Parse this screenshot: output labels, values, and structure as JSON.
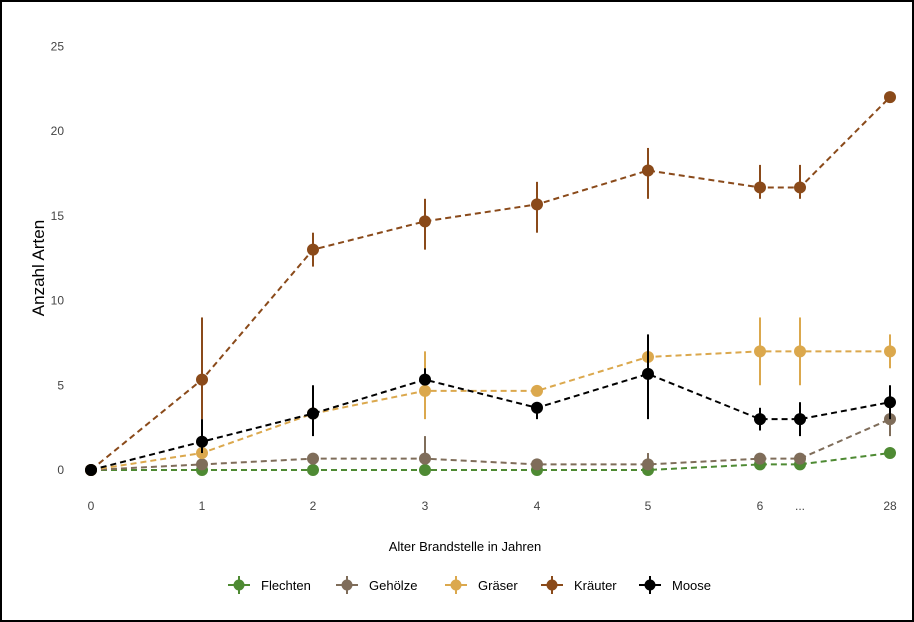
{
  "chart_data": {
    "type": "line",
    "title": "",
    "xlabel": "Alter Brandstelle in Jahren",
    "ylabel": "Anzahl Arten",
    "categories": [
      "0",
      "1",
      "2",
      "3",
      "4",
      "5",
      "6",
      "...",
      "28"
    ],
    "y_ticks": [
      "0",
      "5",
      "10",
      "15",
      "20",
      "25"
    ],
    "ylim": [
      0,
      25
    ],
    "grid": false,
    "legend_position": "bottom",
    "line_style": "dashed",
    "series": [
      {
        "name": "Flechten",
        "color": "#4e8a33",
        "values": [
          0,
          0,
          0,
          0,
          0,
          0,
          0.33,
          0.33,
          1
        ],
        "err_low": [
          0,
          0,
          0,
          0,
          0,
          0,
          0.33,
          0.33,
          1
        ],
        "err_high": [
          0,
          0,
          0,
          0,
          0,
          0,
          0.33,
          0.33,
          1
        ]
      },
      {
        "name": "Gehölze",
        "color": "#7f6d5a",
        "values": [
          0,
          0.33,
          0.67,
          0.67,
          0.33,
          0.33,
          0.67,
          0.67,
          3
        ],
        "err_low": [
          0,
          0.33,
          0.67,
          0.67,
          0.33,
          0.33,
          0.67,
          0.67,
          2
        ],
        "err_high": [
          0,
          0.33,
          0.67,
          2,
          0.33,
          1,
          0.67,
          0.67,
          4
        ]
      },
      {
        "name": "Gräser",
        "color": "#dba84d",
        "values": [
          0,
          1,
          3.33,
          4.67,
          4.67,
          6.67,
          7,
          7,
          7
        ],
        "err_low": [
          0,
          1,
          3.33,
          3,
          4.67,
          6.67,
          5,
          5,
          6
        ],
        "err_high": [
          0,
          1,
          3.33,
          7,
          4.67,
          6.67,
          9,
          9,
          8
        ]
      },
      {
        "name": "Kräuter",
        "color": "#8a4a1a",
        "values": [
          0,
          5.33,
          13,
          14.67,
          15.67,
          17.67,
          16.67,
          16.67,
          22
        ],
        "err_low": [
          0,
          3,
          12,
          13,
          14,
          16,
          16,
          16,
          22
        ],
        "err_high": [
          0,
          9,
          14,
          16,
          17,
          19,
          18,
          18,
          22
        ]
      },
      {
        "name": "Moose",
        "color": "#000000",
        "values": [
          0,
          1.67,
          3.33,
          5.33,
          3.67,
          5.67,
          3,
          3,
          4
        ],
        "err_low": [
          0,
          1,
          2,
          5,
          3,
          3,
          2.33,
          2,
          3
        ],
        "err_high": [
          0,
          3,
          5,
          6,
          4,
          8,
          3.67,
          4,
          5
        ]
      }
    ]
  }
}
